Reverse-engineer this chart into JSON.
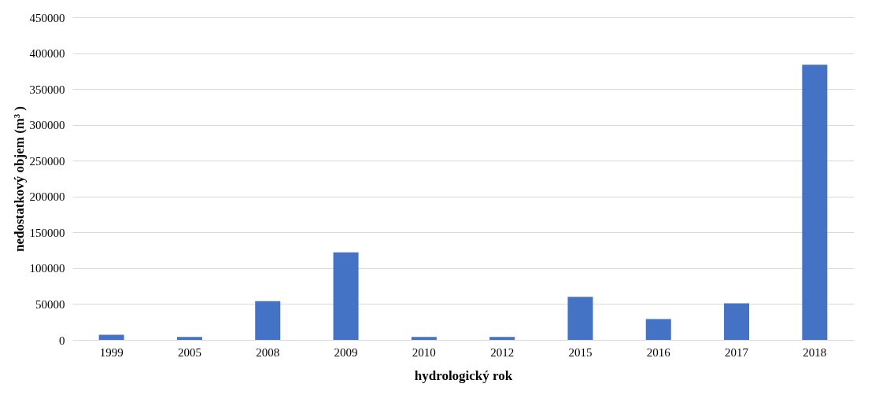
{
  "chart_data": {
    "type": "bar",
    "xlabel": "hydrologický rok",
    "ylabel": "nedostatkový objem (m³ )",
    "categories": [
      "1999",
      "2005",
      "2008",
      "2009",
      "2010",
      "2012",
      "2015",
      "2016",
      "2017",
      "2018"
    ],
    "series": [
      {
        "color": "#4472c4",
        "values": [
          7000,
          4000,
          54000,
          122000,
          4000,
          4000,
          60000,
          29000,
          51000,
          384000
        ]
      }
    ],
    "ylim": [
      0,
      450000
    ],
    "yticks": [
      0,
      50000,
      100000,
      150000,
      200000,
      250000,
      300000,
      350000,
      400000,
      450000
    ],
    "grid": "y"
  }
}
